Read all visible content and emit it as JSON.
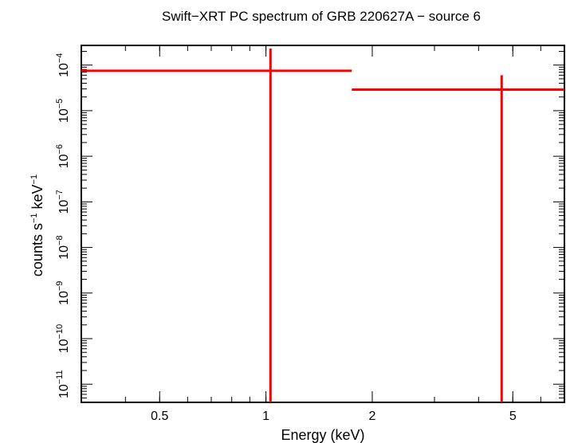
{
  "chart_data": {
    "type": "scatter",
    "title": "Swift−XRT PC spectrum of GRB 220627A − source 6",
    "xlabel": "Energy (keV)",
    "ylabel_parts": {
      "base": "counts s",
      "exp1": "−1",
      "mid": " keV",
      "exp2": "−1"
    },
    "x_scale": "log",
    "y_scale": "log",
    "xlim": [
      0.3,
      7.0
    ],
    "ylim": [
      4e-12,
      0.00027
    ],
    "x_ticks": [
      {
        "value": 0.5,
        "label": "0.5"
      },
      {
        "value": 1,
        "label": "1"
      },
      {
        "value": 2,
        "label": "2"
      },
      {
        "value": 5,
        "label": "5"
      }
    ],
    "y_ticks": [
      {
        "value": 0.0001,
        "exp": "−4"
      },
      {
        "value": 1e-05,
        "exp": "−5"
      },
      {
        "value": 1e-06,
        "exp": "−6"
      },
      {
        "value": 1e-07,
        "exp": "−7"
      },
      {
        "value": 1e-08,
        "exp": "−8"
      },
      {
        "value": 1e-09,
        "exp": "−9"
      },
      {
        "value": 1e-10,
        "exp": "−10"
      },
      {
        "value": 1e-11,
        "exp": "−11"
      }
    ],
    "y_tick_base": "10",
    "series": [
      {
        "color": "#ff0000",
        "points": [
          {
            "x": 1.03,
            "x_low": 0.3,
            "x_high": 1.75,
            "y": 7.5e-05,
            "y_low": 4e-12,
            "y_high": 0.00023
          },
          {
            "x": 4.65,
            "x_low": 1.75,
            "x_high": 7.0,
            "y": 2.9e-05,
            "y_low": 4e-12,
            "y_high": 6e-05
          }
        ]
      }
    ]
  }
}
